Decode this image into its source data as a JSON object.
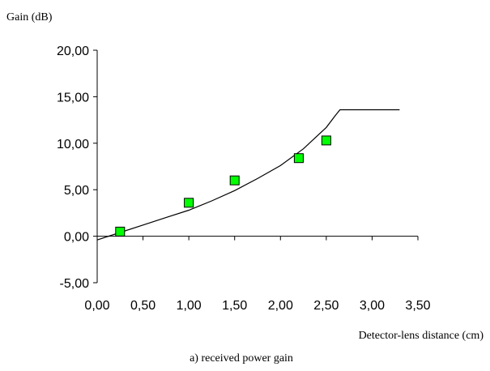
{
  "chart_data": {
    "type": "scatter",
    "ylabel": "Gain (dB)",
    "xlabel": "Detector-lens distance (cm)",
    "caption": "a) received power gain",
    "xlim": [
      0,
      3.5
    ],
    "ylim": [
      -5,
      20
    ],
    "x_ticks": [
      "0,00",
      "0,50",
      "1,00",
      "1,50",
      "2,00",
      "2,50",
      "3,00",
      "3,50"
    ],
    "y_ticks": [
      "-5,00",
      "0,00",
      "5,00",
      "10,00",
      "15,00",
      "20,00"
    ],
    "x_tick_values": [
      0,
      0.5,
      1,
      1.5,
      2,
      2.5,
      3,
      3.5
    ],
    "y_tick_values": [
      -5,
      0,
      5,
      10,
      15,
      20
    ],
    "grid": false,
    "legend": "none",
    "series": [
      {
        "kind": "markers",
        "marker": "square",
        "color": "#00ff00",
        "x": [
          0.25,
          1.0,
          1.5,
          2.2,
          2.5
        ],
        "y": [
          0.5,
          3.6,
          6.0,
          8.4,
          10.3
        ]
      },
      {
        "kind": "line",
        "color": "#000000",
        "x": [
          0.0,
          0.25,
          0.5,
          0.75,
          1.0,
          1.25,
          1.5,
          1.75,
          2.0,
          2.25,
          2.5,
          2.6,
          2.65,
          2.7,
          3.3
        ],
        "y": [
          -0.4,
          0.4,
          1.2,
          2.0,
          2.8,
          3.8,
          4.9,
          6.2,
          7.6,
          9.4,
          11.7,
          13.0,
          13.6,
          13.6,
          13.6
        ]
      }
    ]
  }
}
